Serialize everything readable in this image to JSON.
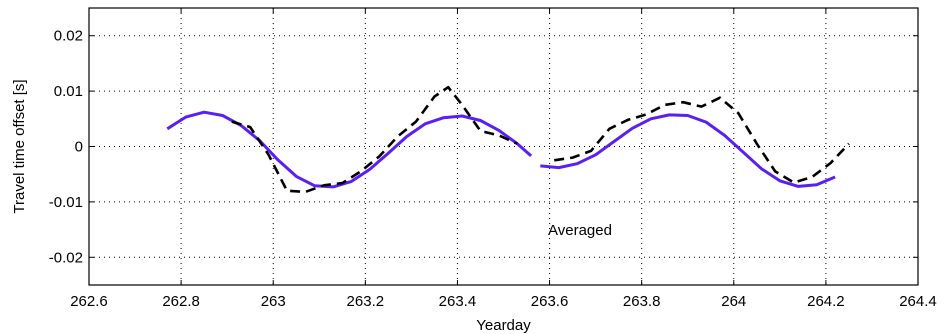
{
  "chart_data": {
    "type": "line",
    "xlabel": "Yearday",
    "ylabel": "Travel time offset [s]",
    "xlim": [
      262.6,
      264.4
    ],
    "ylim": [
      -0.025,
      0.025
    ],
    "grid": true,
    "x_ticks": [
      "262.6",
      "262.8",
      "263",
      "263.2",
      "263.4",
      "263.6",
      "263.8",
      "264",
      "264.2",
      "264.4"
    ],
    "y_ticks": [
      "0.02",
      "0.01",
      "0",
      "-0.01",
      "-0.02"
    ],
    "annotation": "Averaged",
    "colors": {
      "solid": "#5a1ff2",
      "dashed": "#000000"
    },
    "series": [
      {
        "style": "solid",
        "segments": [
          {
            "x": [
              262.77,
              262.81,
              262.85,
              262.89,
              262.93,
              262.97,
              263.01,
              263.05,
              263.09,
              263.13,
              263.17,
              263.21,
              263.25,
              263.29,
              263.33,
              263.37,
              263.41,
              263.45,
              263.49,
              263.53,
              263.56
            ],
            "y": [
              0.0032,
              0.0053,
              0.0062,
              0.0056,
              0.0038,
              0.0011,
              -0.0024,
              -0.0054,
              -0.0071,
              -0.0073,
              -0.0063,
              -0.0041,
              -0.0012,
              0.0018,
              0.0041,
              0.0052,
              0.0055,
              0.0047,
              0.0029,
              0.0005,
              -0.0017
            ]
          },
          {
            "x": [
              263.58,
              263.62,
              263.66,
              263.7,
              263.74,
              263.78,
              263.82,
              263.86,
              263.9,
              263.94,
              263.98,
              264.02,
              264.06,
              264.1,
              264.14,
              264.18,
              264.22
            ],
            "y": [
              -0.0035,
              -0.0038,
              -0.0031,
              -0.0015,
              0.0009,
              0.0033,
              0.005,
              0.0057,
              0.0056,
              0.0044,
              0.002,
              -0.001,
              -0.004,
              -0.0062,
              -0.0072,
              -0.0069,
              -0.0055
            ]
          }
        ]
      },
      {
        "style": "dashed",
        "segments": [
          {
            "x": [
              262.91,
              262.95,
              262.99,
              263.03,
              263.07,
              263.11,
              263.15,
              263.19,
              263.23,
              263.27,
              263.31,
              263.35,
              263.38,
              263.41,
              263.45,
              263.49,
              263.53
            ],
            "y": [
              0.0045,
              0.0035,
              -0.0015,
              -0.008,
              -0.0082,
              -0.007,
              -0.0066,
              -0.0045,
              -0.0018,
              0.0018,
              0.0045,
              0.009,
              0.0107,
              0.0075,
              0.0028,
              0.002,
              0.0005
            ]
          },
          {
            "x": [
              263.61,
              263.65,
              263.69,
              263.73,
              263.77,
              263.81,
              263.85,
              263.89,
              263.93,
              263.97,
              264.01,
              264.05,
              264.09,
              264.13,
              264.17,
              264.21,
              264.25
            ],
            "y": [
              -0.0025,
              -0.002,
              -0.0008,
              0.0032,
              0.0048,
              0.0058,
              0.0075,
              0.008,
              0.0072,
              0.0088,
              0.006,
              0.0005,
              -0.0045,
              -0.0065,
              -0.0055,
              -0.003,
              0.0005
            ]
          }
        ]
      }
    ]
  }
}
